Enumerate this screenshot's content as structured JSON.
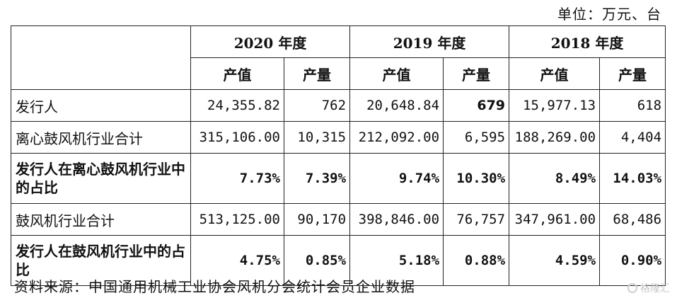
{
  "unit": "单位：万元、台",
  "years": [
    "2020 年度",
    "2019 年度",
    "2018 年度"
  ],
  "subheaders": {
    "value": "产值",
    "volume": "产量"
  },
  "rows": [
    {
      "label": "发行人",
      "bold": false,
      "cells": [
        "24,355.82",
        "762",
        "20,648.84",
        "679",
        "15,977.13",
        "618"
      ]
    },
    {
      "label": "离心鼓风机行业合计",
      "bold": false,
      "cells": [
        "315,106.00",
        "10,315",
        "212,092.00",
        "6,595",
        "188,269.00",
        "4,404"
      ]
    },
    {
      "label": "发行人在离心鼓风机行业中的占比",
      "bold": true,
      "cells": [
        "7.73%",
        "7.39%",
        "9.74%",
        "10.30%",
        "8.49%",
        "14.03%"
      ]
    },
    {
      "label": "鼓风机行业合计",
      "bold": false,
      "cells": [
        "513,125.00",
        "90,170",
        "398,846.00",
        "76,757",
        "347,961.00",
        "68,486"
      ]
    },
    {
      "label": "发行人在鼓风机行业中的占比",
      "bold": true,
      "cells": [
        "4.75%",
        "0.85%",
        "5.18%",
        "0.88%",
        "4.59%",
        "0.90%"
      ]
    }
  ],
  "source": "资料来源：中国通用机械工业协会风机分会统计会员企业数据",
  "watermark": "格隆汇"
}
